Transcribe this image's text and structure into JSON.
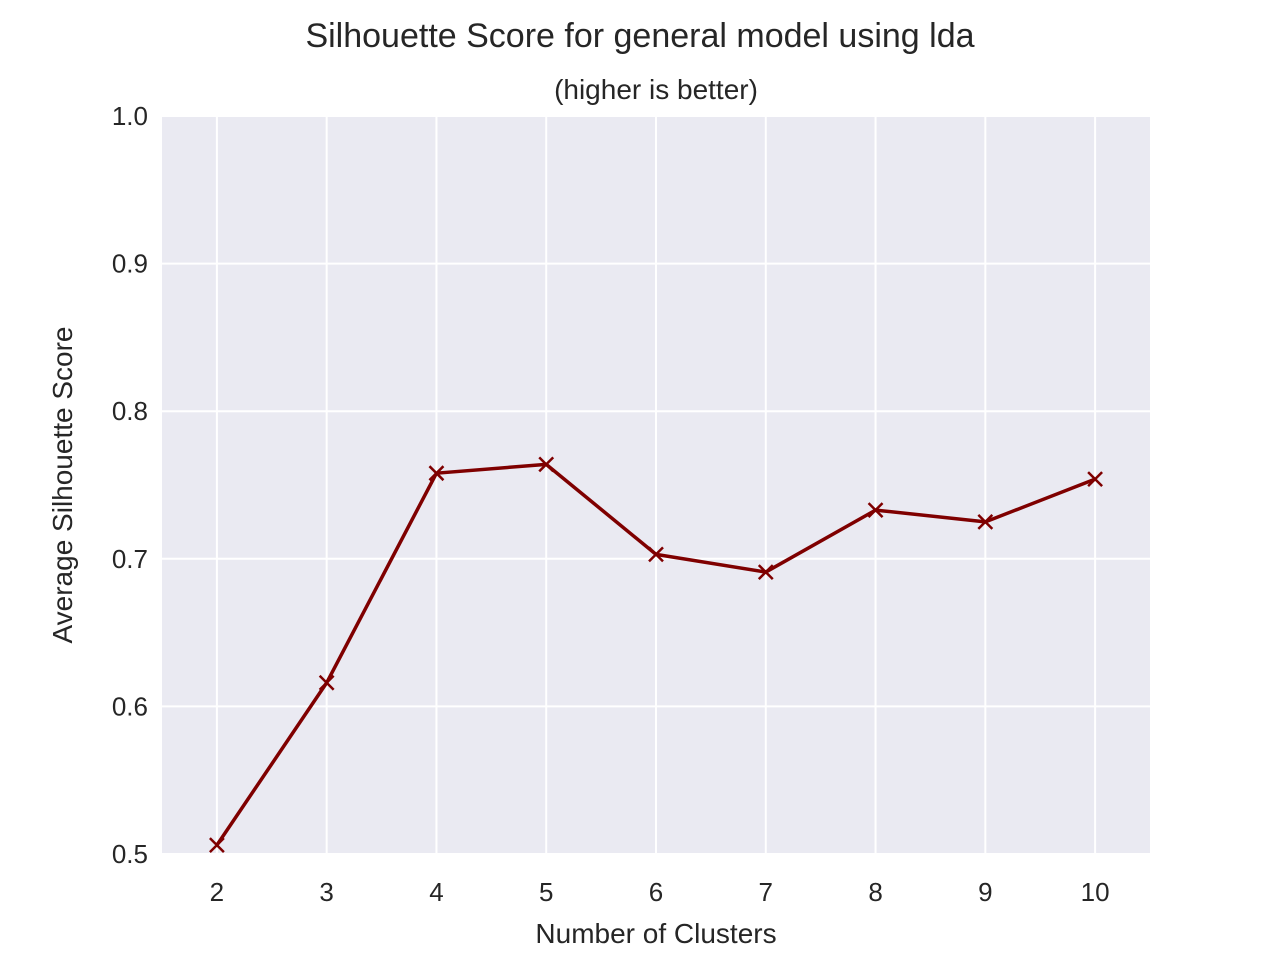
{
  "chart_data": {
    "type": "line",
    "title": "Silhouette Score for general model using lda",
    "subtitle": "(higher is better)",
    "xlabel": "Number of Clusters",
    "ylabel": "Average Silhouette Score",
    "x": [
      2,
      3,
      4,
      5,
      6,
      7,
      8,
      9,
      10
    ],
    "series": [
      {
        "values": [
          0.506,
          0.616,
          0.758,
          0.764,
          0.703,
          0.691,
          0.733,
          0.725,
          0.754
        ]
      }
    ],
    "xlim": [
      1.5,
      10.5
    ],
    "ylim": [
      0.5,
      1.0
    ],
    "xticks": [
      "2",
      "3",
      "4",
      "5",
      "6",
      "7",
      "8",
      "9",
      "10"
    ],
    "yticks": [
      "0.5",
      "0.6",
      "0.7",
      "0.8",
      "0.9",
      "1.0"
    ],
    "grid": true,
    "marker": "x",
    "colors": {
      "line": "#7f0000",
      "plot_background": "#eaeaf2",
      "grid": "#ffffff",
      "text": "#262626"
    }
  }
}
